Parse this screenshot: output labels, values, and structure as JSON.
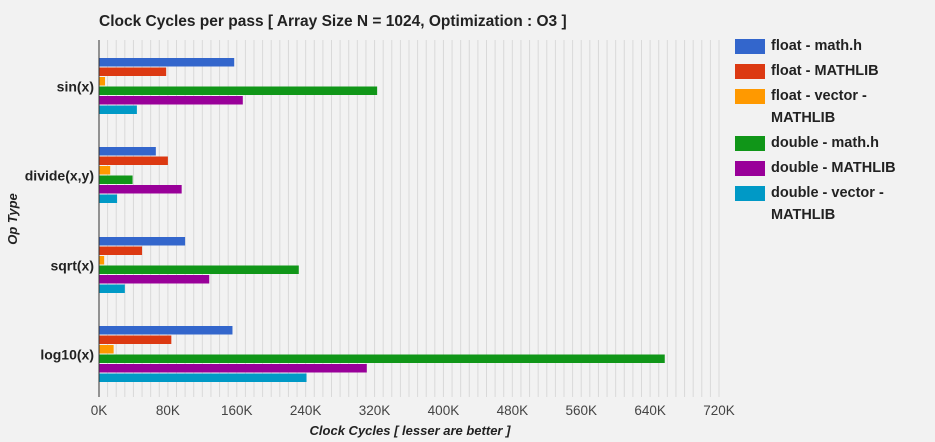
{
  "chart_data": {
    "type": "bar",
    "orientation": "horizontal",
    "title": "Clock Cycles per pass [ Array Size N = 1024, Optimization : O3 ]",
    "xlabel": "Clock Cycles [ lesser are better ]",
    "ylabel": "Op Type",
    "categories": [
      "sin(x)",
      "divide(x,y)",
      "sqrt(x)",
      "log10(x)"
    ],
    "xlim": [
      0,
      720000
    ],
    "xticks": [
      0,
      80000,
      160000,
      240000,
      320000,
      400000,
      480000,
      560000,
      640000,
      720000
    ],
    "xtick_labels": [
      "0K",
      "80K",
      "160K",
      "240K",
      "320K",
      "400K",
      "480K",
      "560K",
      "640K",
      "720K"
    ],
    "grid": true,
    "legend_position": "right",
    "series": [
      {
        "name": "float - math.h",
        "color": "#3366cc",
        "values": [
          157000,
          66000,
          100000,
          155000
        ]
      },
      {
        "name": "float - MATHLIB",
        "color": "#dc3912",
        "values": [
          78000,
          80000,
          50000,
          84000
        ]
      },
      {
        "name": "float - vector - MATHLIB",
        "color": "#ff9900",
        "values": [
          7000,
          13000,
          6000,
          17000
        ]
      },
      {
        "name": "double - math.h",
        "color": "#109618",
        "values": [
          323000,
          39000,
          232000,
          657000
        ]
      },
      {
        "name": "double - MATHLIB",
        "color": "#990099",
        "values": [
          167000,
          96000,
          128000,
          311000
        ]
      },
      {
        "name": "double - vector - MATHLIB",
        "color": "#0099c6",
        "values": [
          44000,
          21000,
          30000,
          241000
        ]
      }
    ]
  }
}
